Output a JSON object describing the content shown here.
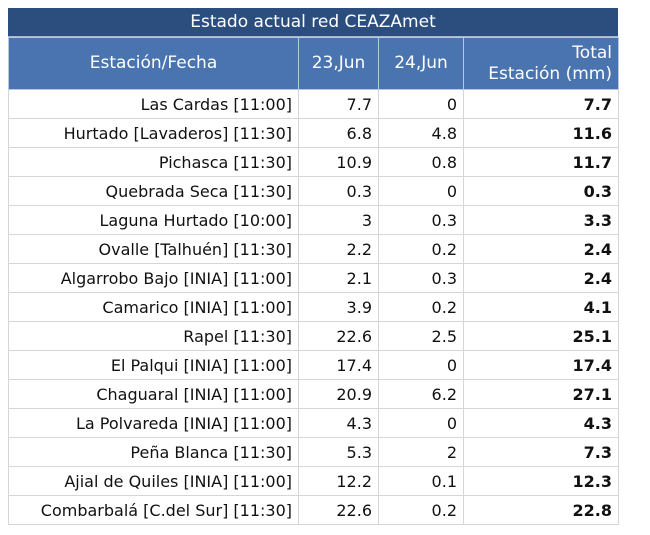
{
  "title": "Estado actual red CEAZAmet",
  "headers": {
    "station": "Estación/Fecha",
    "day1": "23,Jun",
    "day2": "24,Jun",
    "total_line1": "Total",
    "total_line2": "Estación (mm)"
  },
  "rows": [
    {
      "station": "Las Cardas [11:00]",
      "d1": "7.7",
      "d2": "0",
      "total": "7.7"
    },
    {
      "station": "Hurtado [Lavaderos] [11:30]",
      "d1": "6.8",
      "d2": "4.8",
      "total": "11.6"
    },
    {
      "station": "Pichasca [11:30]",
      "d1": "10.9",
      "d2": "0.8",
      "total": "11.7"
    },
    {
      "station": "Quebrada Seca [11:30]",
      "d1": "0.3",
      "d2": "0",
      "total": "0.3"
    },
    {
      "station": "Laguna Hurtado [10:00]",
      "d1": "3",
      "d2": "0.3",
      "total": "3.3"
    },
    {
      "station": "Ovalle [Talhuén] [11:30]",
      "d1": "2.2",
      "d2": "0.2",
      "total": "2.4"
    },
    {
      "station": "Algarrobo Bajo [INIA] [11:00]",
      "d1": "2.1",
      "d2": "0.3",
      "total": "2.4"
    },
    {
      "station": "Camarico [INIA] [11:00]",
      "d1": "3.9",
      "d2": "0.2",
      "total": "4.1"
    },
    {
      "station": "Rapel [11:30]",
      "d1": "22.6",
      "d2": "2.5",
      "total": "25.1"
    },
    {
      "station": "El Palqui [INIA] [11:00]",
      "d1": "17.4",
      "d2": "0",
      "total": "17.4"
    },
    {
      "station": "Chaguaral [INIA] [11:00]",
      "d1": "20.9",
      "d2": "6.2",
      "total": "27.1"
    },
    {
      "station": "La Polvareda [INIA] [11:00]",
      "d1": "4.3",
      "d2": "0",
      "total": "4.3"
    },
    {
      "station": "Peña Blanca [11:30]",
      "d1": "5.3",
      "d2": "2",
      "total": "7.3"
    },
    {
      "station": "Ajial de Quiles [INIA] [11:00]",
      "d1": "12.2",
      "d2": "0.1",
      "total": "12.3"
    },
    {
      "station": "Combarbalá [C.del Sur] [11:30]",
      "d1": "22.6",
      "d2": "0.2",
      "total": "22.8"
    }
  ]
}
